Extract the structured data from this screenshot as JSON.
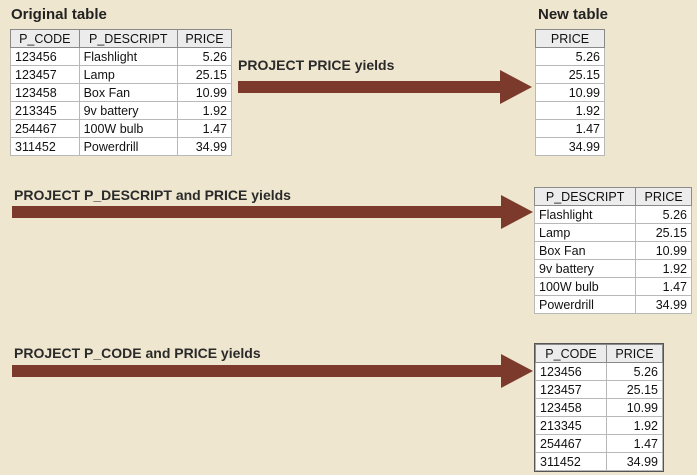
{
  "headings": {
    "original": "Original table",
    "new": "New table"
  },
  "colors": {
    "arrow": "#7b3a2b",
    "background": "#efe6cf"
  },
  "original_table": {
    "columns": [
      "P_CODE",
      "P_DESCRIPT",
      "PRICE"
    ],
    "rows": [
      [
        "123456",
        "Flashlight",
        "5.26"
      ],
      [
        "123457",
        "Lamp",
        "25.15"
      ],
      [
        "123458",
        "Box Fan",
        "10.99"
      ],
      [
        "213345",
        "9v battery",
        "1.92"
      ],
      [
        "254467",
        "100W bulb",
        "1.47"
      ],
      [
        "311452",
        "Powerdrill",
        "34.99"
      ]
    ]
  },
  "projections": [
    {
      "label": "PROJECT PRICE yields",
      "columns": [
        "PRICE"
      ],
      "rows": [
        [
          "5.26"
        ],
        [
          "25.15"
        ],
        [
          "10.99"
        ],
        [
          "1.92"
        ],
        [
          "1.47"
        ],
        [
          "34.99"
        ]
      ]
    },
    {
      "label": "PROJECT P_DESCRIPT and PRICE yields",
      "columns": [
        "P_DESCRIPT",
        "PRICE"
      ],
      "rows": [
        [
          "Flashlight",
          "5.26"
        ],
        [
          "Lamp",
          "25.15"
        ],
        [
          "Box Fan",
          "10.99"
        ],
        [
          "9v battery",
          "1.92"
        ],
        [
          "100W bulb",
          "1.47"
        ],
        [
          "Powerdrill",
          "34.99"
        ]
      ]
    },
    {
      "label": "PROJECT P_CODE and PRICE yields",
      "columns": [
        "P_CODE",
        "PRICE"
      ],
      "rows": [
        [
          "123456",
          "5.26"
        ],
        [
          "123457",
          "25.15"
        ],
        [
          "123458",
          "10.99"
        ],
        [
          "213345",
          "1.92"
        ],
        [
          "254467",
          "1.47"
        ],
        [
          "311452",
          "34.99"
        ]
      ]
    }
  ]
}
